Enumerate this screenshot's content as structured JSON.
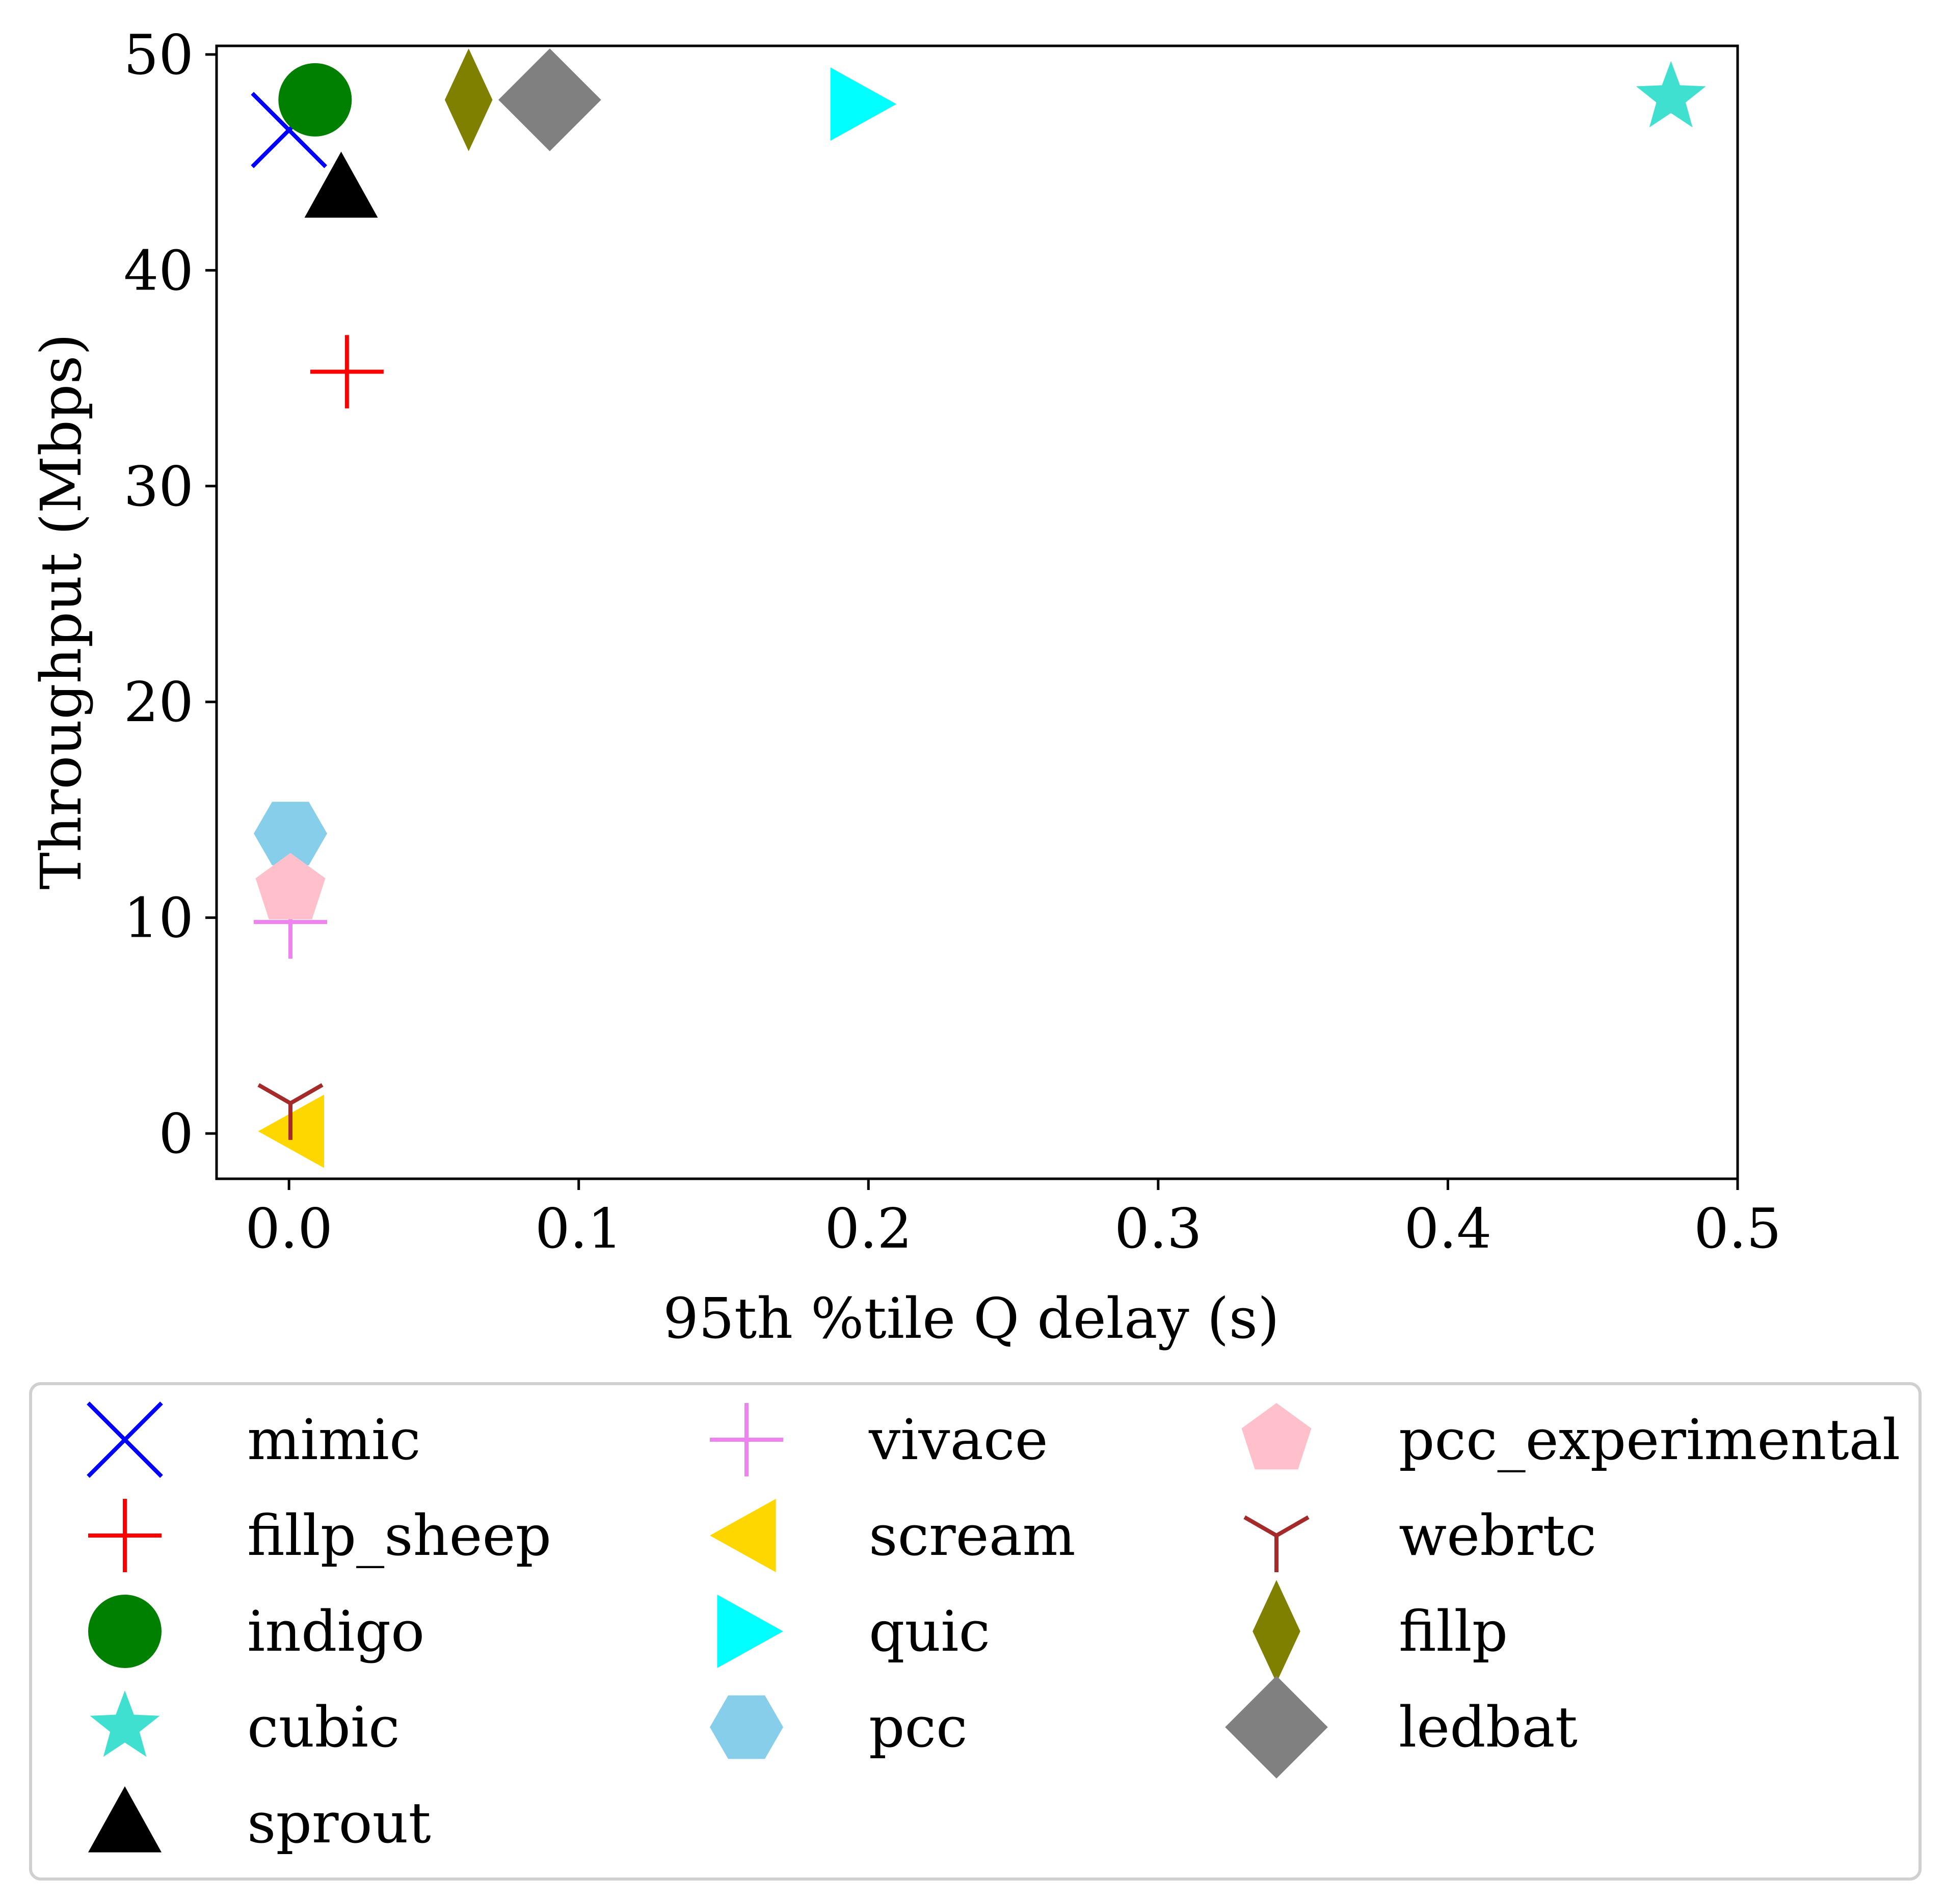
{
  "chart_data": {
    "type": "scatter",
    "xlabel": "95th %tile Q delay (s)",
    "ylabel": "Throughput (Mbps)",
    "xlim": [
      -0.025,
      0.5
    ],
    "ylim": [
      -2.1,
      50.4
    ],
    "xticks": [
      0.0,
      0.1,
      0.2,
      0.3,
      0.4,
      0.5
    ],
    "xtick_labels": [
      "0.0",
      "0.1",
      "0.2",
      "0.3",
      "0.4",
      "0.5"
    ],
    "yticks": [
      0,
      10,
      20,
      30,
      40,
      50
    ],
    "ytick_labels": [
      "0",
      "10",
      "20",
      "30",
      "40",
      "50"
    ],
    "grid": false,
    "legend_placement": "below",
    "legend_columns": 3,
    "series": [
      {
        "name": "mimic",
        "x": 0.0,
        "y": 46.5,
        "marker": "x",
        "color": "#0000ff"
      },
      {
        "name": "fillp_sheep",
        "x": 0.02,
        "y": 35.3,
        "marker": "plus",
        "color": "#ff0000"
      },
      {
        "name": "indigo",
        "x": 0.009,
        "y": 47.9,
        "marker": "circle",
        "color": "#008000"
      },
      {
        "name": "cubic",
        "x": 0.477,
        "y": 48.0,
        "marker": "star",
        "color": "#40e0d0"
      },
      {
        "name": "sprout",
        "x": 0.018,
        "y": 43.8,
        "marker": "triangle-up",
        "color": "#000000"
      },
      {
        "name": "vivace",
        "x": 0.0005,
        "y": 9.8,
        "marker": "tri-plus",
        "color": "#ee82ee"
      },
      {
        "name": "scream",
        "x": 0.002,
        "y": 0.1,
        "marker": "triangle-left",
        "color": "#ffd700"
      },
      {
        "name": "quic",
        "x": 0.197,
        "y": 47.7,
        "marker": "triangle-right",
        "color": "#00ffff"
      },
      {
        "name": "pcc",
        "x": 0.0005,
        "y": 13.9,
        "marker": "hexagon",
        "color": "#87ceeb"
      },
      {
        "name": "pcc_experimental",
        "x": 0.0005,
        "y": 11.3,
        "marker": "pentagon",
        "color": "#ffc0cb"
      },
      {
        "name": "webrtc",
        "x": 0.0005,
        "y": 1.4,
        "marker": "tri-down",
        "color": "#a52a2a"
      },
      {
        "name": "fillp",
        "x": 0.062,
        "y": 47.9,
        "marker": "diamond-thin",
        "color": "#808000"
      },
      {
        "name": "ledbat",
        "x": 0.09,
        "y": 47.9,
        "marker": "diamond",
        "color": "#808080"
      }
    ],
    "legend_order": [
      [
        "mimic",
        "fillp_sheep",
        "indigo",
        "cubic",
        "sprout"
      ],
      [
        "vivace",
        "scream",
        "quic",
        "pcc"
      ],
      [
        "pcc_experimental",
        "webrtc",
        "fillp",
        "ledbat"
      ]
    ]
  }
}
